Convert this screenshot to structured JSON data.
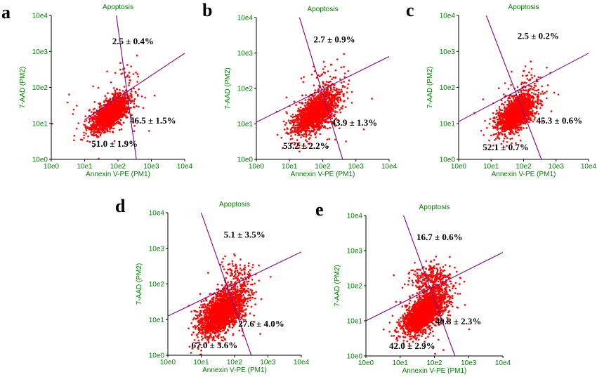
{
  "colors": {
    "points": "#ff0000",
    "gate_lines": "#800080",
    "axis_text": "#008000",
    "labels": "#000000"
  },
  "chart_data": [
    {
      "panel": "a",
      "type": "scatter",
      "title": "Apoptosis",
      "xlabel": "Annexin V-PE (PM1)",
      "ylabel": "7-AAD (PM2)",
      "x_scale": "log",
      "y_scale": "log",
      "xlim": [
        "10e0",
        "10e4"
      ],
      "ylim": [
        "10e0",
        "10e4"
      ],
      "x_ticks": [
        "10e0",
        "10e1",
        "10e2",
        "10e3",
        "10e4"
      ],
      "y_ticks": [
        "10e0",
        "10e1",
        "10e2",
        "10e3",
        "10e4"
      ],
      "quadrants": {
        "upper_right": "2.5 ± 0.4%",
        "lower_right": "46.5 ± 1.5%",
        "lower_left": "51.0 ± 1.9%"
      },
      "points": {
        "count": 1700,
        "seed": 11,
        "main_center": [
          1.78,
          1.29
        ],
        "main_spread": [
          0.27,
          0.2
        ],
        "upper_fraction": 0.025,
        "upper_center": [
          2.3,
          2.33
        ],
        "upper_spread": [
          0.28,
          0.22
        ]
      },
      "gates": {
        "diagonal": [
          [
            1.0,
            1.1
          ],
          [
            4.0,
            2.95
          ]
        ],
        "vertical": [
          [
            1.95,
            4.0
          ],
          [
            2.55,
            0.0
          ]
        ]
      }
    },
    {
      "panel": "b",
      "type": "scatter",
      "title": "Apoptosis",
      "xlabel": "Annexin V-PE (PM1)",
      "ylabel": "7-AAD (PM2)",
      "x_scale": "log",
      "y_scale": "log",
      "xlim": [
        "10e0",
        "10e4"
      ],
      "ylim": [
        "10e0",
        "10e4"
      ],
      "x_ticks": [
        "10e0",
        "10e1",
        "10e2",
        "10e3",
        "10e4"
      ],
      "y_ticks": [
        "10e0",
        "10e1",
        "10e2",
        "10e3",
        "10e4"
      ],
      "quadrants": {
        "upper_right": "2.7 ± 0.9%",
        "lower_right": "43.9 ± 1.3%",
        "lower_left": "53.2 ± 2.2%"
      },
      "points": {
        "count": 1700,
        "seed": 23,
        "main_center": [
          1.8,
          1.32
        ],
        "main_spread": [
          0.33,
          0.24
        ],
        "upper_fraction": 0.027,
        "upper_center": [
          2.2,
          2.25
        ],
        "upper_spread": [
          0.3,
          0.25
        ]
      },
      "gates": {
        "diagonal": [
          [
            0.0,
            1.05
          ],
          [
            4.0,
            2.9
          ]
        ],
        "vertical": [
          [
            1.3,
            4.0
          ],
          [
            2.6,
            0.0
          ]
        ]
      }
    },
    {
      "panel": "c",
      "type": "scatter",
      "title": "Apoptosis",
      "xlabel": "Annexin V-PE (PM1)",
      "ylabel": "7-AAD (PM2)",
      "x_scale": "log",
      "y_scale": "log",
      "xlim": [
        "10e0",
        "10e4"
      ],
      "ylim": [
        "10e0",
        "10e4"
      ],
      "x_ticks": [
        "10e0",
        "10e1",
        "10e2",
        "10e3",
        "10e4"
      ],
      "y_ticks": [
        "10e0",
        "10e1",
        "10e2",
        "10e3",
        "10e4"
      ],
      "quadrants": {
        "upper_right": "2.5 ± 0.2%",
        "lower_right": "45.3 ± 0.6%",
        "lower_left": "52.1 ± 0.7%"
      },
      "points": {
        "count": 1700,
        "seed": 37,
        "main_center": [
          1.78,
          1.3
        ],
        "main_spread": [
          0.3,
          0.23
        ],
        "upper_fraction": 0.025,
        "upper_center": [
          2.2,
          2.25
        ],
        "upper_spread": [
          0.3,
          0.22
        ]
      },
      "gates": {
        "diagonal": [
          [
            0.0,
            1.05
          ],
          [
            4.0,
            2.95
          ]
        ],
        "vertical": [
          [
            0.85,
            4.0
          ],
          [
            2.55,
            0.0
          ]
        ]
      }
    },
    {
      "panel": "d",
      "type": "scatter",
      "title": "Apoptosis",
      "xlabel": "Annexin V-PE (PM1)",
      "ylabel": "7-AAD (PM2)",
      "x_scale": "log",
      "y_scale": "log",
      "xlim": [
        "10e0",
        "10e4"
      ],
      "ylim": [
        "10e0",
        "10e4"
      ],
      "x_ticks": [
        "10e0",
        "10e1",
        "10e2",
        "10e3",
        "10e4"
      ],
      "y_ticks": [
        "10e0",
        "10e1",
        "10e2",
        "10e3",
        "10e4"
      ],
      "quadrants": {
        "upper_right": "5.1 ± 3.5%",
        "lower_right": "27.6 ± 4.0%",
        "lower_left": "67.0 ± 3.6%"
      },
      "points": {
        "count": 2100,
        "seed": 51,
        "main_center": [
          1.62,
          1.2
        ],
        "main_spread": [
          0.35,
          0.27
        ],
        "upper_fraction": 0.05,
        "upper_center": [
          2.15,
          2.3
        ],
        "upper_spread": [
          0.28,
          0.2
        ]
      },
      "gates": {
        "diagonal": [
          [
            0.0,
            1.1
          ],
          [
            4.0,
            2.9
          ]
        ],
        "vertical": [
          [
            1.0,
            4.0
          ],
          [
            2.5,
            0.0
          ]
        ]
      }
    },
    {
      "panel": "e",
      "type": "scatter",
      "title": "Apoptosis",
      "xlabel": "Annexin V-PE (PM1)",
      "ylabel": "7-AAD (PM2)",
      "x_scale": "log",
      "y_scale": "log",
      "xlim": [
        "10e0",
        "10e4"
      ],
      "ylim": [
        "10e0",
        "10e4"
      ],
      "x_ticks": [
        "10e0",
        "10e1",
        "10e2",
        "10e3",
        "10e4"
      ],
      "y_ticks": [
        "10e0",
        "10e1",
        "10e2",
        "10e3",
        "10e4"
      ],
      "quadrants": {
        "upper_right": "16.7 ± 0.6%",
        "lower_right": "40.8 ± 2.3%",
        "lower_left": "42.0 ± 2.9%"
      },
      "points": {
        "count": 2300,
        "seed": 67,
        "main_center": [
          1.68,
          1.22
        ],
        "main_spread": [
          0.3,
          0.24
        ],
        "upper_fraction": 0.17,
        "upper_center": [
          1.95,
          2.15
        ],
        "upper_spread": [
          0.3,
          0.25
        ]
      },
      "gates": {
        "diagonal": [
          [
            0.0,
            1.0
          ],
          [
            4.0,
            2.95
          ]
        ],
        "vertical": [
          [
            1.1,
            4.0
          ],
          [
            2.6,
            0.0
          ]
        ]
      }
    }
  ]
}
